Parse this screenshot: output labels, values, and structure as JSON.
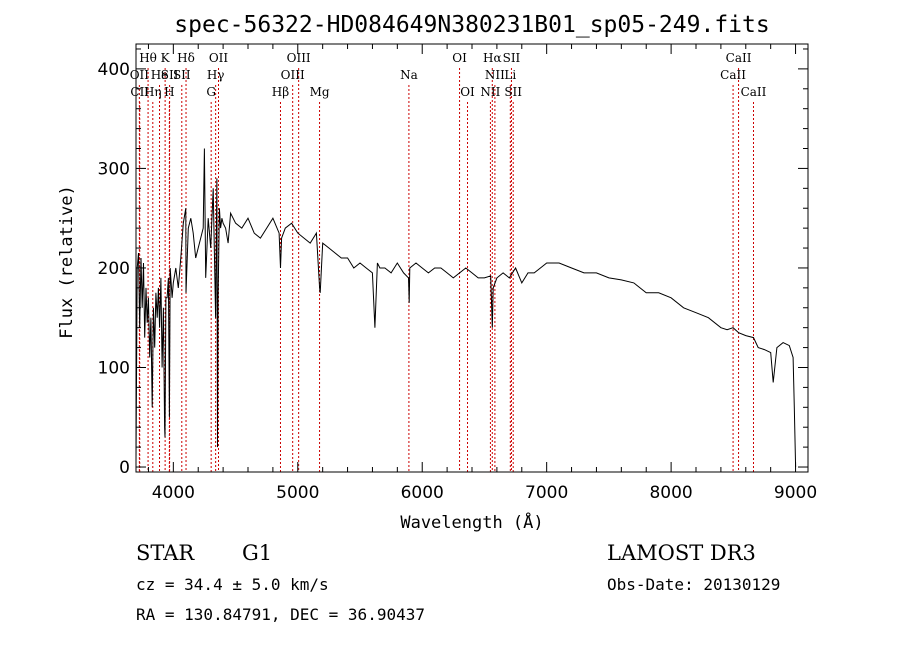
{
  "chart_data": {
    "type": "line",
    "title": "spec-56322-HD084649N380231B01_sp05-249.fits",
    "xlabel": "Wavelength (Å)",
    "ylabel": "Flux (relative)",
    "xlim": [
      3700,
      9100
    ],
    "ylim": [
      -5,
      425
    ],
    "xticks": [
      4000,
      5000,
      6000,
      7000,
      8000,
      9000
    ],
    "xtick_labels": [
      "4000",
      "5000",
      "6000",
      "7000",
      "8000",
      "9000"
    ],
    "yticks": [
      0,
      100,
      200,
      300,
      400
    ],
    "ytick_labels": [
      "0",
      "100",
      "200",
      "300",
      "400"
    ],
    "series": [
      {
        "name": "flux",
        "x": [
          3700,
          3710,
          3720,
          3730,
          3740,
          3750,
          3760,
          3770,
          3780,
          3790,
          3800,
          3810,
          3820,
          3830,
          3840,
          3850,
          3860,
          3870,
          3880,
          3890,
          3900,
          3910,
          3920,
          3930,
          3933,
          3940,
          3950,
          3960,
          3968,
          3975,
          3990,
          4000,
          4020,
          4040,
          4060,
          4080,
          4100,
          4102,
          4120,
          4140,
          4160,
          4180,
          4200,
          4220,
          4240,
          4250,
          4260,
          4280,
          4300,
          4320,
          4340,
          4350,
          4355,
          4360,
          4370,
          4380,
          4390,
          4400,
          4420,
          4440,
          4460,
          4500,
          4550,
          4600,
          4650,
          4700,
          4750,
          4800,
          4850,
          4861,
          4870,
          4900,
          4950,
          5000,
          5050,
          5100,
          5150,
          5175,
          5180,
          5200,
          5250,
          5300,
          5350,
          5400,
          5450,
          5500,
          5550,
          5600,
          5620,
          5640,
          5660,
          5700,
          5750,
          5800,
          5850,
          5890,
          5895,
          5900,
          5950,
          6000,
          6050,
          6100,
          6150,
          6200,
          6250,
          6300,
          6350,
          6400,
          6450,
          6500,
          6550,
          6563,
          6570,
          6600,
          6650,
          6700,
          6750,
          6800,
          6850,
          6900,
          6950,
          7000,
          7100,
          7200,
          7300,
          7400,
          7500,
          7600,
          7700,
          7800,
          7900,
          8000,
          8100,
          8200,
          8300,
          8400,
          8450,
          8498,
          8542,
          8600,
          8662,
          8700,
          8750,
          8800,
          8820,
          8850,
          8900,
          8950,
          8980,
          8990,
          9000
        ],
        "values": [
          5,
          200,
          215,
          140,
          210,
          160,
          205,
          130,
          180,
          145,
          170,
          110,
          150,
          60,
          160,
          120,
          175,
          150,
          180,
          140,
          190,
          100,
          160,
          40,
          30,
          170,
          170,
          190,
          50,
          200,
          170,
          185,
          200,
          180,
          210,
          245,
          260,
          175,
          240,
          250,
          235,
          210,
          220,
          230,
          240,
          320,
          190,
          250,
          220,
          280,
          150,
          290,
          20,
          170,
          260,
          240,
          250,
          245,
          240,
          225,
          255,
          245,
          240,
          250,
          235,
          230,
          240,
          250,
          235,
          200,
          230,
          240,
          245,
          235,
          230,
          225,
          235,
          180,
          175,
          225,
          220,
          215,
          210,
          210,
          200,
          205,
          200,
          195,
          140,
          205,
          200,
          200,
          195,
          205,
          195,
          190,
          165,
          200,
          205,
          200,
          195,
          200,
          200,
          195,
          190,
          195,
          200,
          195,
          190,
          190,
          192,
          140,
          180,
          190,
          195,
          190,
          200,
          185,
          195,
          195,
          200,
          205,
          205,
          200,
          195,
          195,
          190,
          188,
          185,
          175,
          175,
          170,
          160,
          155,
          150,
          140,
          138,
          140,
          135,
          132,
          130,
          120,
          118,
          115,
          85,
          120,
          125,
          122,
          110,
          60,
          0
        ]
      }
    ],
    "line_markers": [
      {
        "label": "Hθ",
        "wavelength": 3797,
        "row": 1
      },
      {
        "label": "OII",
        "wavelength": 3727,
        "row": 2
      },
      {
        "label": "CII",
        "wavelength": 3730,
        "row": 3
      },
      {
        "label": "He",
        "wavelength": 3889,
        "row": 2
      },
      {
        "label": "Hη",
        "wavelength": 3835,
        "row": 3
      },
      {
        "label": "K",
        "wavelength": 3934,
        "row": 1
      },
      {
        "label": "SII",
        "wavelength": 3970,
        "row": 2
      },
      {
        "label": "H",
        "wavelength": 3968,
        "row": 3
      },
      {
        "label": "Hδ",
        "wavelength": 4102,
        "row": 1
      },
      {
        "label": "SII",
        "wavelength": 4068,
        "row": 2
      },
      {
        "label": "OII",
        "wavelength": 4363,
        "row": 1
      },
      {
        "label": "Hγ",
        "wavelength": 4340,
        "row": 2
      },
      {
        "label": "G",
        "wavelength": 4304,
        "row": 3
      },
      {
        "label": "Hβ",
        "wavelength": 4861,
        "row": 3
      },
      {
        "label": "OIII",
        "wavelength": 5007,
        "row": 1
      },
      {
        "label": "OIII",
        "wavelength": 4959,
        "row": 2
      },
      {
        "label": "Mg",
        "wavelength": 5175,
        "row": 3
      },
      {
        "label": "Na",
        "wavelength": 5893,
        "row": 2
      },
      {
        "label": "OI",
        "wavelength": 6300,
        "row": 1
      },
      {
        "label": "OI",
        "wavelength": 6364,
        "row": 3
      },
      {
        "label": "Hα",
        "wavelength": 6563,
        "row": 1
      },
      {
        "label": "SII",
        "wavelength": 6717,
        "row": 1
      },
      {
        "label": "NII",
        "wavelength": 6584,
        "row": 2
      },
      {
        "label": "Li",
        "wavelength": 6708,
        "row": 2
      },
      {
        "label": "NII",
        "wavelength": 6548,
        "row": 3
      },
      {
        "label": "SII",
        "wavelength": 6731,
        "row": 3
      },
      {
        "label": "CaII",
        "wavelength": 8542,
        "row": 1
      },
      {
        "label": "CaII",
        "wavelength": 8498,
        "row": 2
      },
      {
        "label": "CaII",
        "wavelength": 8662,
        "row": 3
      }
    ],
    "marker_color": "#cc0000"
  },
  "info": {
    "class_label": "STAR",
    "subclass_label": "G1",
    "velocity": "cz = 34.4 ± 5.0 km/s",
    "coords": "RA = 130.84791, DEC =  36.90437",
    "survey": "LAMOST DR3",
    "obs_date": "Obs-Date: 20130129"
  }
}
